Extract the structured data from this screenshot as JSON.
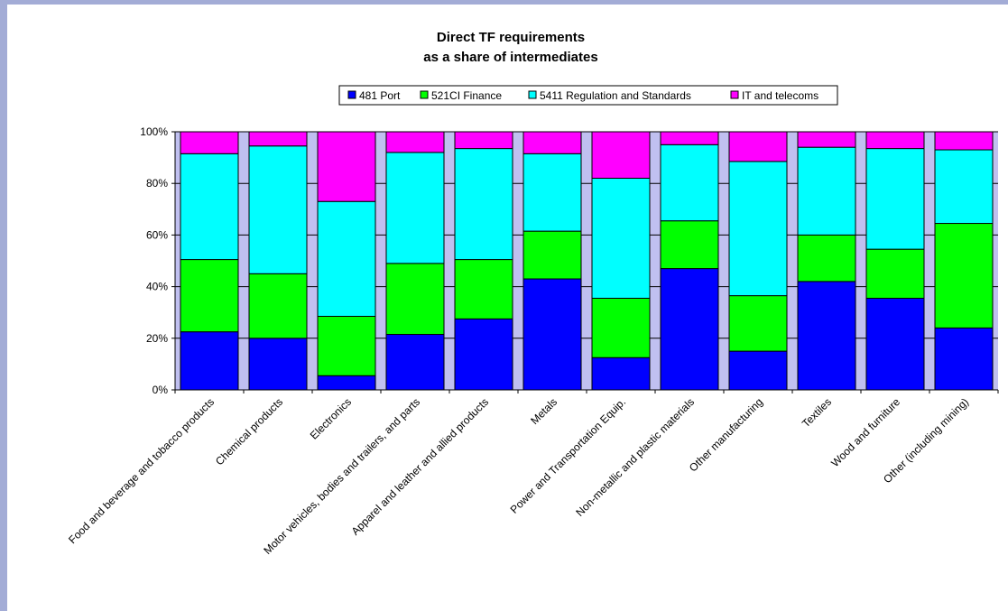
{
  "chart_data": {
    "type": "bar",
    "stacked": "percent",
    "title": "Direct TF requirements",
    "subtitle": "as a share of intermediates",
    "xlabel": "",
    "ylabel": "",
    "ylim": [
      0,
      100
    ],
    "yticks": [
      "0%",
      "20%",
      "40%",
      "60%",
      "80%",
      "100%"
    ],
    "grid": true,
    "legend_position": "top",
    "categories": [
      "Food and beverage and tobacco products",
      "Chemical products",
      "Electronics",
      "Motor vehicles, bodies and trailers, and parts",
      "Apparel and leather and allied products",
      "Metals",
      "Power and Transportation Equip.",
      "Non-metallic and plastic materials",
      "Other manufacturing",
      "Textiles",
      "Wood and furniture",
      "Other (including mining)"
    ],
    "series": [
      {
        "name": "481 Port",
        "color": "#0000ff",
        "values": [
          22.5,
          20,
          5.5,
          21.5,
          27.5,
          43,
          12.5,
          47,
          15,
          42,
          35.5,
          24
        ]
      },
      {
        "name": "521CI Finance",
        "color": "#00ff00",
        "values": [
          28,
          25,
          23,
          27.5,
          23,
          18.5,
          23,
          18.5,
          21.5,
          18,
          19,
          40.5
        ]
      },
      {
        "name": "5411 Regulation and Standards",
        "color": "#00ffff",
        "values": [
          41,
          49.5,
          44.5,
          43,
          43,
          30,
          46.5,
          29.5,
          52,
          34,
          39,
          28.5
        ]
      },
      {
        "name": "IT and telecoms",
        "color": "#ff00ff",
        "values": [
          8.5,
          5.5,
          27,
          8,
          6.5,
          8.5,
          18,
          5,
          11.5,
          6,
          6.5,
          7
        ]
      }
    ]
  }
}
